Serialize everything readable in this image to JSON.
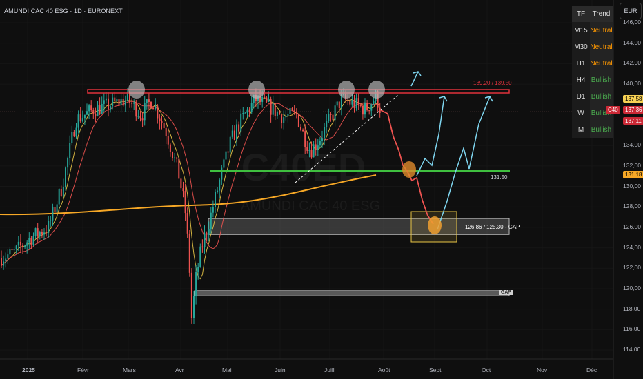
{
  "header": {
    "title": "AMUNDI CAC 40 ESG · 1D · EURONEXT"
  },
  "currency_button": {
    "label": "EUR"
  },
  "watermark": {
    "ticker": "C40ED",
    "name": "AMUNDI CAC 40 ESG"
  },
  "trend_table": {
    "headers": [
      "TF",
      "Trend"
    ],
    "rows": [
      {
        "tf": "M15",
        "trend": "Neutral",
        "color": "#ff9800"
      },
      {
        "tf": "M30",
        "trend": "Neutral",
        "color": "#ff9800"
      },
      {
        "tf": "H1",
        "trend": "Neutral",
        "color": "#ff9800"
      },
      {
        "tf": "H4",
        "trend": "Bullish",
        "color": "#4caf50"
      },
      {
        "tf": "D1",
        "trend": "Bullish",
        "color": "#4caf50"
      },
      {
        "tf": "W",
        "trend": "Bullish",
        "color": "#4caf50"
      },
      {
        "tf": "M",
        "trend": "Bullish",
        "color": "#4caf50"
      }
    ]
  },
  "price_axis": {
    "ticks": [
      "146,00",
      "144,00",
      "142,00",
      "140,00",
      "134,00",
      "132,00",
      "130,00",
      "128,00",
      "126,00",
      "124,00",
      "122,00",
      "120,00",
      "118,00",
      "116,00",
      "114,00"
    ],
    "tick_values": [
      146,
      144,
      142,
      140,
      134,
      132,
      130,
      128,
      126,
      124,
      122,
      120,
      118,
      116,
      114
    ],
    "tags": [
      {
        "label": "137,58",
        "bg": "#f7d154",
        "fg": "#000000",
        "value": 137.58
      },
      {
        "label": "C40",
        "bg": "#cc2936",
        "fg": "#ffffff",
        "value": 137.36
      },
      {
        "label": "137,36",
        "bg": "#cc2936",
        "fg": "#ffffff",
        "value": 137.36
      },
      {
        "label": "137,11",
        "bg": "#cc2936",
        "fg": "#ffffff",
        "value": 137.11
      },
      {
        "label": "131,18",
        "bg": "#f7a826",
        "fg": "#000000",
        "value": 131.18
      }
    ]
  },
  "time_axis": {
    "labels": [
      "2025",
      "Févr",
      "Mars",
      "Avr",
      "Mai",
      "Juin",
      "Juill",
      "Août",
      "Sept",
      "Oct",
      "Nov",
      "Déc"
    ]
  },
  "annotations": {
    "resistance": "139.20 / 139.50",
    "support": "131.50",
    "gap_zone": "126.86 / 125.30 - GAP",
    "gap_lower": "GAP"
  },
  "colors": {
    "up": "#26a69a",
    "down": "#ef5350",
    "resistance": "#e0323c",
    "support": "#3fbf3f",
    "ema_long": "#f7a826",
    "ma_fast": "#e8c546",
    "ma_red": "#ef5350",
    "projection_down": "#ef5350",
    "projection_up": "#7fd6f0"
  },
  "chart_data": {
    "type": "candlestick",
    "title": "AMUNDI CAC 40 ESG · 1D · EURONEXT",
    "ylim": [
      113,
      147
    ],
    "levels": [
      {
        "label": "139.20 / 139.50",
        "value": 139.35
      },
      {
        "label": "131.50",
        "value": 131.5
      }
    ],
    "zones": [
      {
        "label": "126.86 / 125.30 - GAP",
        "low": 125.3,
        "high": 126.86
      },
      {
        "label": "GAP",
        "low": 119.3,
        "high": 119.8
      }
    ],
    "last_price": 137.36
  }
}
